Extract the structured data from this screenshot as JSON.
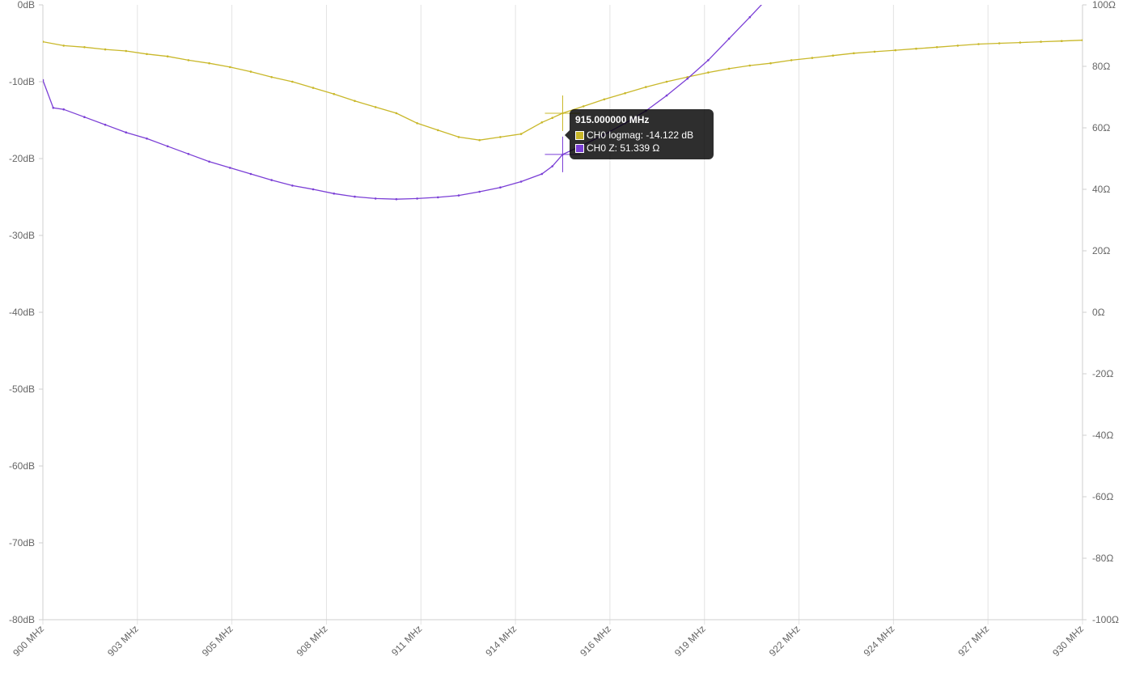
{
  "chart_data": {
    "type": "line",
    "x_unit": "MHz",
    "xlim": [
      900,
      930
    ],
    "x_ticks": [
      "900 MHz",
      "903 MHz",
      "905 MHz",
      "908 MHz",
      "911 MHz",
      "914 MHz",
      "916 MHz",
      "919 MHz",
      "922 MHz",
      "924 MHz",
      "927 MHz",
      "930 MHz"
    ],
    "y_left": {
      "ylim": [
        -80,
        0
      ],
      "ticks": [
        "0dB",
        "-10dB",
        "-20dB",
        "-30dB",
        "-40dB",
        "-50dB",
        "-60dB",
        "-70dB",
        "-80dB"
      ]
    },
    "y_right": {
      "ylim": [
        -100,
        100
      ],
      "ticks": [
        "100Ω",
        "80Ω",
        "60Ω",
        "40Ω",
        "20Ω",
        "0Ω",
        "-20Ω",
        "-40Ω",
        "-60Ω",
        "-80Ω",
        "-100Ω"
      ]
    },
    "grid": "vertical",
    "series": [
      {
        "name": "CH0 logmag",
        "axis": "left",
        "color": "#c9b82a",
        "x": [
          900,
          900.6,
          901.2,
          901.8,
          902.4,
          903,
          903.6,
          904.2,
          904.8,
          905.4,
          906,
          906.6,
          907.2,
          907.8,
          908.4,
          909,
          909.6,
          910.2,
          910.8,
          911.4,
          912,
          912.6,
          913.2,
          913.8,
          914.4,
          914.7,
          915,
          915.6,
          916.2,
          916.8,
          917.4,
          918,
          918.6,
          919.2,
          919.8,
          920.4,
          921,
          921.6,
          922.2,
          922.8,
          923.4,
          924,
          924.6,
          925.2,
          925.8,
          926.4,
          927,
          927.6,
          928.2,
          928.8,
          929.4,
          930
        ],
        "y": [
          -4.8,
          -5.3,
          -5.5,
          -5.8,
          -6.0,
          -6.4,
          -6.7,
          -7.2,
          -7.6,
          -8.1,
          -8.7,
          -9.4,
          -10.0,
          -10.8,
          -11.6,
          -12.5,
          -13.3,
          -14.1,
          -15.4,
          -16.3,
          -17.2,
          -17.6,
          -17.2,
          -16.8,
          -15.3,
          -14.7,
          -14.1,
          -13.2,
          -12.3,
          -11.5,
          -10.7,
          -10.0,
          -9.4,
          -8.8,
          -8.3,
          -7.9,
          -7.6,
          -7.2,
          -6.9,
          -6.6,
          -6.3,
          -6.1,
          -5.9,
          -5.7,
          -5.5,
          -5.3,
          -5.1,
          -5.0,
          -4.9,
          -4.8,
          -4.7,
          -4.6
        ]
      },
      {
        "name": "CH0 Z",
        "axis": "right",
        "color": "#7b3fd6",
        "x": [
          900,
          900.3,
          900.6,
          901.2,
          901.8,
          902.4,
          903,
          903.6,
          904.2,
          904.8,
          905.4,
          906,
          906.6,
          907.2,
          907.8,
          908.4,
          909,
          909.6,
          910.2,
          910.8,
          911.4,
          912,
          912.6,
          913.2,
          913.8,
          914.4,
          914.7,
          915,
          915.6,
          916.2,
          916.8,
          917.4,
          918,
          918.6,
          919.2,
          919.8,
          920.4,
          920.9,
          921.1
        ],
        "y": [
          75.5,
          66.5,
          66.0,
          63.5,
          61.0,
          58.5,
          56.5,
          54.0,
          51.5,
          49.0,
          47.0,
          45.0,
          43.0,
          41.2,
          40.0,
          38.6,
          37.6,
          37.0,
          36.8,
          37.0,
          37.4,
          38.0,
          39.2,
          40.6,
          42.5,
          45.0,
          47.5,
          51.339,
          54.5,
          57.8,
          61.5,
          65.5,
          70.5,
          76.0,
          82.0,
          89.0,
          96.0,
          102.0,
          104.0
        ]
      }
    ],
    "hover": {
      "x": 915.0,
      "title": "915.000000 MHz",
      "rows": [
        {
          "label": "CH0 logmag: -14.122 dB",
          "color": "#c9b82a"
        },
        {
          "label": "CH0 Z: 51.339 Ω",
          "color": "#7b3fd6"
        }
      ]
    }
  }
}
